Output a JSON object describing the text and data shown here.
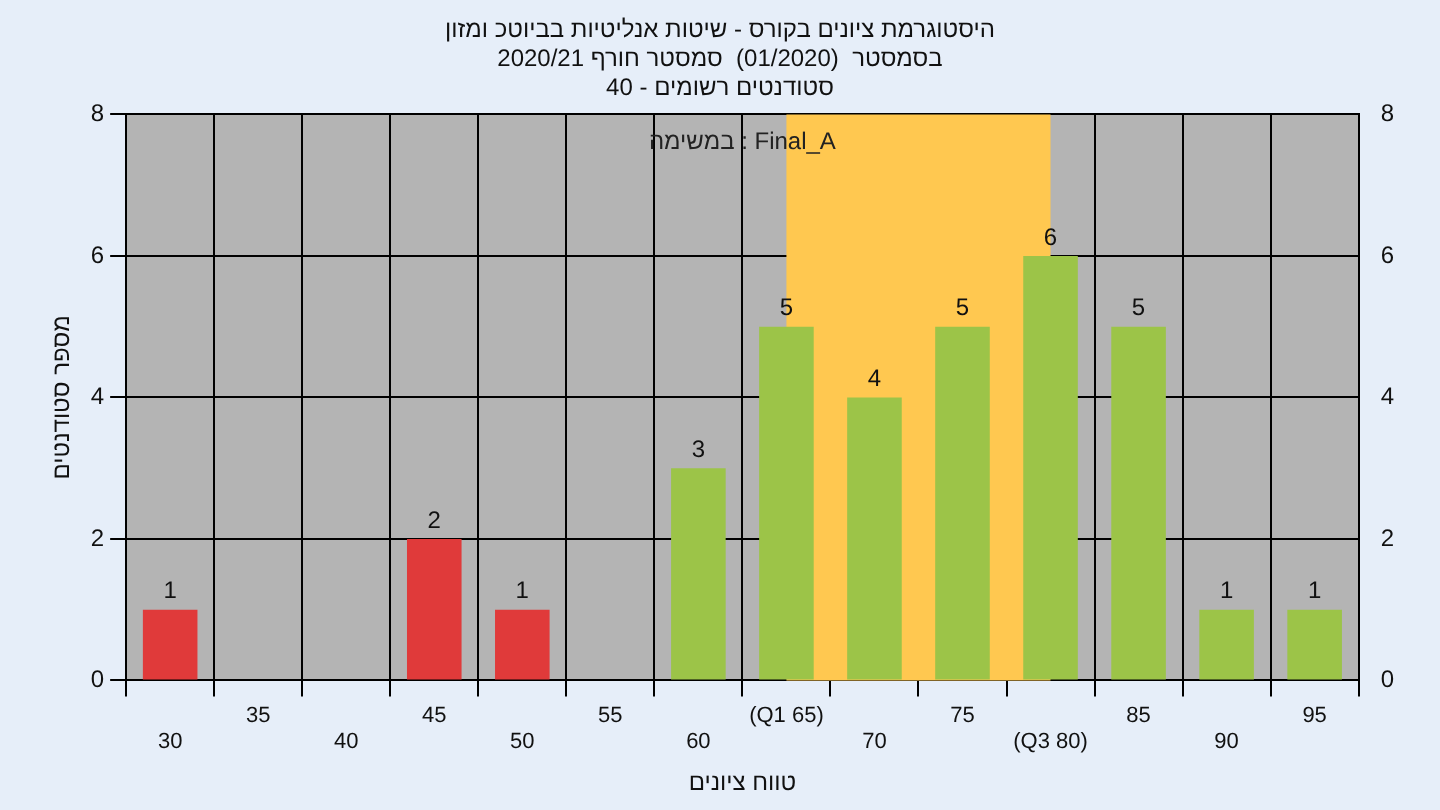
{
  "chart_data": {
    "type": "bar",
    "title": "היסטוגרמת ציונים בקורס - שיטות אנליטיות בביוטכ ומזון",
    "subtitle": "בסמסטר  (01/2020)  סמסטר חורף 2020/21\nסטודנטים רשומים - 40",
    "xlabel": "טווח ציונים",
    "ylabel": "מספר סטודנטים",
    "annotations": [
      "במשימה : Final_A"
    ],
    "categories": [
      "30",
      "35",
      "40",
      "45",
      "50",
      "55",
      "60",
      "(Q1 65)",
      "70",
      "75",
      "(Q3 80)",
      "85",
      "90",
      "95"
    ],
    "values": [
      1,
      0,
      0,
      2,
      1,
      0,
      3,
      5,
      4,
      5,
      6,
      5,
      1,
      1
    ],
    "colors": [
      "#e03a3a",
      "#e03a3a",
      "#e03a3a",
      "#e03a3a",
      "#e03a3a",
      "#e03a3a",
      "#9cc448",
      "#9cc448",
      "#9cc448",
      "#9cc448",
      "#9cc448",
      "#9cc448",
      "#9cc448",
      "#9cc448"
    ],
    "value_labels": [
      "1",
      null,
      null,
      "2",
      "1",
      null,
      "3",
      "5",
      "4",
      "5",
      "6",
      "5",
      "1",
      "1"
    ],
    "bands": [
      {
        "axis": "x",
        "from": "(Q1 65)",
        "to": "(Q3 80)",
        "color": "#ffc850"
      }
    ],
    "ylim": [
      0,
      8
    ],
    "yticks": [
      0,
      2,
      4,
      6,
      8
    ],
    "y2lim": [
      0,
      8
    ],
    "y2ticks": [
      0,
      2,
      4,
      6,
      8
    ],
    "grid": true,
    "legend": false
  }
}
